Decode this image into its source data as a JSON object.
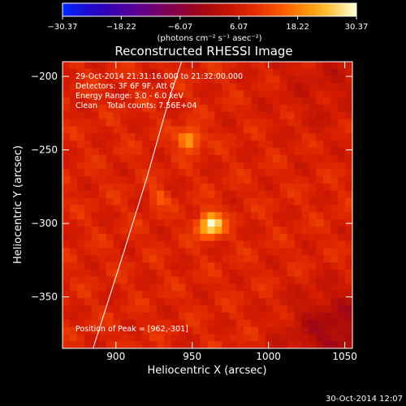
{
  "chart_data": {
    "type": "heatmap",
    "title": "Reconstructed RHESSI Image",
    "xlabel": "Heliocentric X (arcsec)",
    "ylabel": "Heliocentric Y (arcsec)",
    "xlim": [
      865,
      1055
    ],
    "ylim": [
      -385,
      -190
    ],
    "x_ticks": [
      900,
      950,
      1000,
      1050
    ],
    "x_tick_labels": [
      "900",
      "950",
      "1000",
      "1050"
    ],
    "y_ticks": [
      -200,
      -250,
      -300,
      -350
    ],
    "y_tick_labels": [
      "−200",
      "−250",
      "−300",
      "−350"
    ],
    "colorbar": {
      "min": -30.37,
      "max": 30.37,
      "tick_values": [
        -30.37,
        -18.22,
        -6.07,
        6.07,
        18.22,
        30.37
      ],
      "tick_labels": [
        "−30.37",
        "−18.22",
        "−6.07",
        "6.07",
        "18.22",
        "30.37"
      ],
      "units_label": "(photons cm⁻² s⁻¹ asec⁻²)"
    },
    "annotations": [
      "29-Oct-2014 21:31:16.000 to 21:32:00.000",
      "Detectors: 3F 6F 9F, Att 0",
      "Energy Range: 3.0 - 6.0 keV",
      "Clean    Total counts: 7.56E+04"
    ],
    "peak_label": "Position of Peak = [962,-301]",
    "sources": [
      {
        "x": 962,
        "y": -301,
        "value": 30.37
      },
      {
        "x": 948,
        "y": -243,
        "value": 24.0
      },
      {
        "x": 928,
        "y": -283,
        "value": 15.0
      }
    ],
    "limb_curve": [
      [
        885,
        -385
      ],
      [
        905,
        -320
      ],
      [
        920,
        -270
      ],
      [
        935,
        -215
      ],
      [
        943,
        -190
      ]
    ],
    "background_value": 8.0
  },
  "footer": {
    "timestamp": "30-Oct-2014 12:07"
  }
}
